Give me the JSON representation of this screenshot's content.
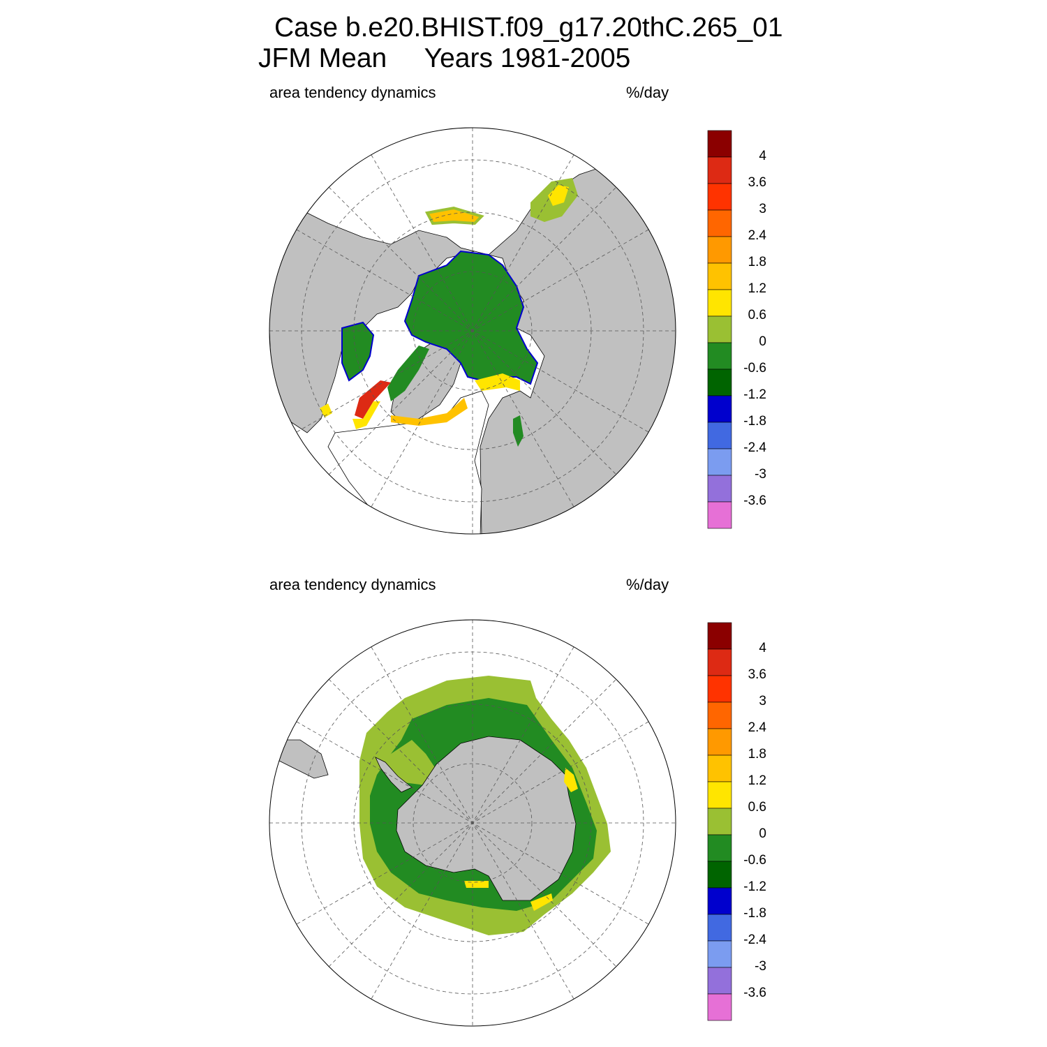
{
  "title": {
    "line1": "Case b.e20.BHIST.f09_g17.20thC.265_01",
    "line2": "JFM Mean     Years 1981-2005"
  },
  "panels": [
    {
      "id": "north",
      "left_label": "area tendency dynamics",
      "right_label": "%/day",
      "hemisphere": "Northern Hemisphere (North Pole stereographic)"
    },
    {
      "id": "south",
      "left_label": "area tendency dynamics",
      "right_label": "%/day",
      "hemisphere": "Southern Hemisphere (South Pole stereographic)"
    }
  ],
  "colorbar": {
    "labels": [
      "4",
      "3.6",
      "3",
      "2.4",
      "1.8",
      "1.2",
      "0.6",
      "0",
      "-0.6",
      "-1.2",
      "-1.8",
      "-2.4",
      "-3",
      "-3.6"
    ],
    "colors": [
      "#8b0000",
      "#dd2a14",
      "#ff3300",
      "#ff6600",
      "#ff9900",
      "#ffc200",
      "#ffe500",
      "#9ac033",
      "#228b22",
      "#006400",
      "#0000cd",
      "#4169e1",
      "#7b9cf0",
      "#9370db",
      "#e670d6"
    ]
  },
  "colors": {
    "land": "#c0c0c0",
    "ocean": "#ffffff",
    "green": "#228b22",
    "dark_green": "#006400",
    "light_green": "#9ac033",
    "yellow": "#ffe500",
    "red": "#dd2a14"
  }
}
